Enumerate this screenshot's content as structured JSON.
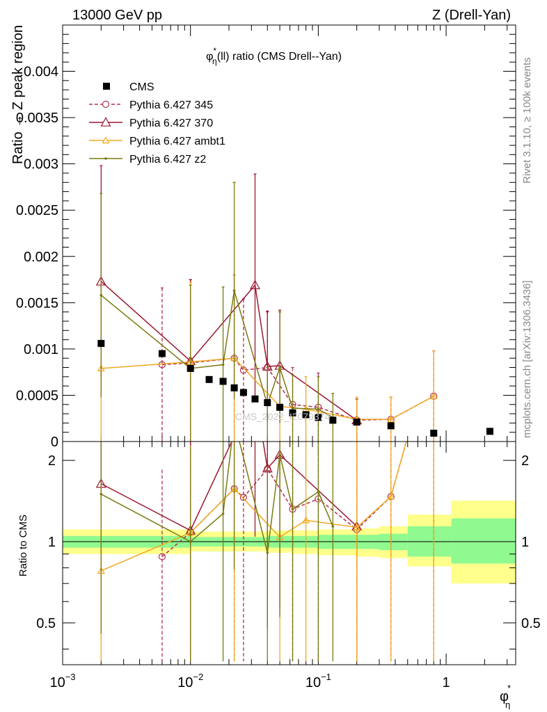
{
  "header": {
    "left": "13000 GeV pp",
    "right": "Z (Drell-Yan)"
  },
  "side_labels": {
    "rivet": "Rivet 3.1.10, ≥ 100k events",
    "mcplots": "mcplots.cern.ch [arXiv:1306.3436]"
  },
  "watermark": "CMS_2022_I2079374",
  "chart_data": {
    "type": "scatter",
    "title_main": "φ",
    "title_sup": "*",
    "title_sub": "η",
    "title_rest": "(ll) ratio (CMS Drell--Yan)",
    "ylabel_top": "Ratio → Z peak region",
    "ylabel_bottom": "Ratio to CMS",
    "xlabel_main": "φ",
    "xlabel_sup": "*",
    "xlabel_sub": "η",
    "xscale": "log",
    "xlim": [
      0.001,
      3.5
    ],
    "ylim_top": [
      0,
      0.0045
    ],
    "ylim_bottom": [
      0.35,
      2.35
    ],
    "top_ticks": [
      0,
      0.0005,
      0.001,
      0.0015,
      0.002,
      0.0025,
      0.003,
      0.0035,
      0.004
    ],
    "top_tick_labels": [
      "0",
      "0.0005",
      "0.001",
      "0.0015",
      "0.002",
      "0.0025",
      "0.003",
      "0.0035",
      "0.004"
    ],
    "bottom_ticks": [
      0.5,
      1,
      2
    ],
    "bottom_tick_labels": [
      "0.5",
      "1",
      "2"
    ],
    "x_ticks": [
      0.001,
      0.01,
      0.1,
      1
    ],
    "x_tick_labels": [
      {
        "base": "10",
        "exp": "−3"
      },
      {
        "base": "10",
        "exp": "−2"
      },
      {
        "base": "10",
        "exp": "−1"
      },
      {
        "base": "1",
        "exp": ""
      }
    ],
    "legend": {
      "position": "top-left"
    },
    "cms": {
      "name": "CMS",
      "color": "#000000",
      "x": [
        0.002,
        0.006,
        0.01,
        0.014,
        0.018,
        0.022,
        0.026,
        0.032,
        0.04,
        0.05,
        0.063,
        0.08,
        0.1,
        0.13,
        0.2,
        0.37,
        0.8,
        2.2
      ],
      "y": [
        0.00106,
        0.00095,
        0.00079,
        0.00067,
        0.00065,
        0.00058,
        0.00053,
        0.00046,
        0.00042,
        0.00037,
        0.00031,
        0.00029,
        0.00026,
        0.00023,
        0.00021,
        0.00017,
        9e-05,
        0.00011
      ]
    },
    "bands": {
      "edges": [
        0.001,
        0.01,
        0.02,
        0.03,
        0.04,
        0.05,
        0.063,
        0.08,
        0.1,
        0.13,
        0.2,
        0.3,
        0.5,
        1.1,
        3.5
      ],
      "yellow_lo": [
        0.9,
        0.92,
        0.92,
        0.92,
        0.91,
        0.91,
        0.9,
        0.9,
        0.89,
        0.89,
        0.88,
        0.87,
        0.81,
        0.7
      ],
      "yellow_hi": [
        1.11,
        1.09,
        1.09,
        1.09,
        1.1,
        1.1,
        1.1,
        1.1,
        1.11,
        1.11,
        1.12,
        1.14,
        1.26,
        1.42
      ],
      "green_lo": [
        0.95,
        0.96,
        0.96,
        0.96,
        0.95,
        0.95,
        0.95,
        0.95,
        0.94,
        0.94,
        0.94,
        0.93,
        0.88,
        0.83
      ],
      "green_hi": [
        1.05,
        1.04,
        1.04,
        1.04,
        1.05,
        1.05,
        1.05,
        1.05,
        1.06,
        1.06,
        1.06,
        1.07,
        1.14,
        1.22
      ],
      "yellow_color": "#ffff8c",
      "green_color": "#90f990"
    },
    "series": [
      {
        "name": "Pythia 6.427 345",
        "color": "#b03050",
        "marker": "circle",
        "dashed": true,
        "x": [
          0.006,
          0.01,
          0.022,
          0.026,
          0.04,
          0.063,
          0.1,
          0.2,
          0.37,
          0.8
        ],
        "y": [
          0.00083,
          0.00085,
          0.0009,
          0.00077,
          0.0008,
          0.0004,
          0.00037,
          0.00023,
          0.00024,
          0.00049
        ],
        "err": [
          0.00083,
          0.0009,
          0.0009,
          0.00077,
          0.0006,
          0.0004,
          0.00037,
          0.00023,
          0.00024,
          0.00049
        ],
        "ratio": [
          0.88,
          1.08,
          1.57,
          1.46,
          1.86,
          1.32,
          1.44,
          1.11,
          1.47,
          5.4
        ]
      },
      {
        "name": "Pythia 6.427 370",
        "color": "#9a1830",
        "marker": "triangle",
        "dashed": false,
        "x": [
          0.002,
          0.01,
          0.032,
          0.04,
          0.05,
          0.2
        ],
        "y": [
          0.00173,
          0.00087,
          0.00169,
          0.00081,
          0.00082,
          0.00023
        ],
        "err": [
          0.00125,
          0.00088,
          0.0012,
          0.0006,
          0.0006,
          0.00023
        ],
        "ratio": [
          1.64,
          1.1,
          3.6,
          1.87,
          2.1,
          1.14
        ]
      },
      {
        "name": "Pythia 6.427 ambt1",
        "color": "#f0a820",
        "marker": "triangle",
        "dashed": false,
        "x": [
          0.002,
          0.01,
          0.022,
          0.05,
          0.08,
          0.2,
          0.37,
          0.8
        ],
        "y": [
          0.00079,
          0.00086,
          0.0009,
          0.00038,
          0.00035,
          0.00024,
          0.00024,
          0.00049
        ],
        "err": [
          0.00079,
          0.00086,
          0.0009,
          0.00038,
          0.00035,
          0.00024,
          0.00024,
          0.00049
        ],
        "ratio": [
          0.78,
          1.08,
          1.57,
          1.04,
          1.2,
          1.13,
          1.47,
          5.4
        ]
      },
      {
        "name": "Pythia 6.427 z2",
        "color": "#7a7a10",
        "marker": "dot",
        "dashed": false,
        "x": [
          0.002,
          0.01,
          0.018,
          0.022,
          0.04,
          0.05,
          0.063,
          0.1,
          0.13
        ],
        "y": [
          0.00158,
          0.00079,
          0.00083,
          0.00163,
          0.0004,
          0.0008,
          0.00036,
          0.00035,
          0.00026
        ],
        "err": [
          0.0011,
          0.0009,
          0.00084,
          0.00117,
          0.0004,
          0.0006,
          0.00036,
          0.00035,
          0.00026
        ],
        "ratio": [
          1.5,
          1.0,
          1.27,
          2.8,
          0.91,
          2.1,
          1.32,
          1.53,
          1.14
        ]
      }
    ]
  }
}
